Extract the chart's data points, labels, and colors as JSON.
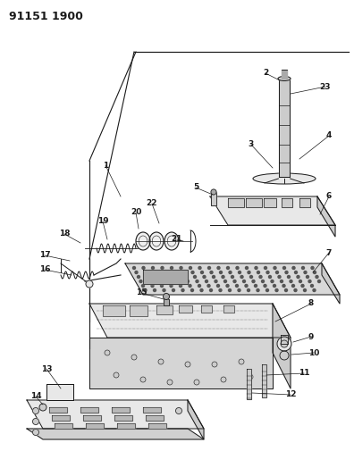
{
  "title": "91151 1900",
  "bg_color": "#ffffff",
  "line_color": "#1a1a1a",
  "fill_light": "#e8e8e8",
  "fill_mid": "#cccccc",
  "fill_dark": "#aaaaaa",
  "title_fontsize": 9,
  "label_fontsize": 6.5,
  "fig_width": 3.96,
  "fig_height": 5.33,
  "dpi": 100
}
